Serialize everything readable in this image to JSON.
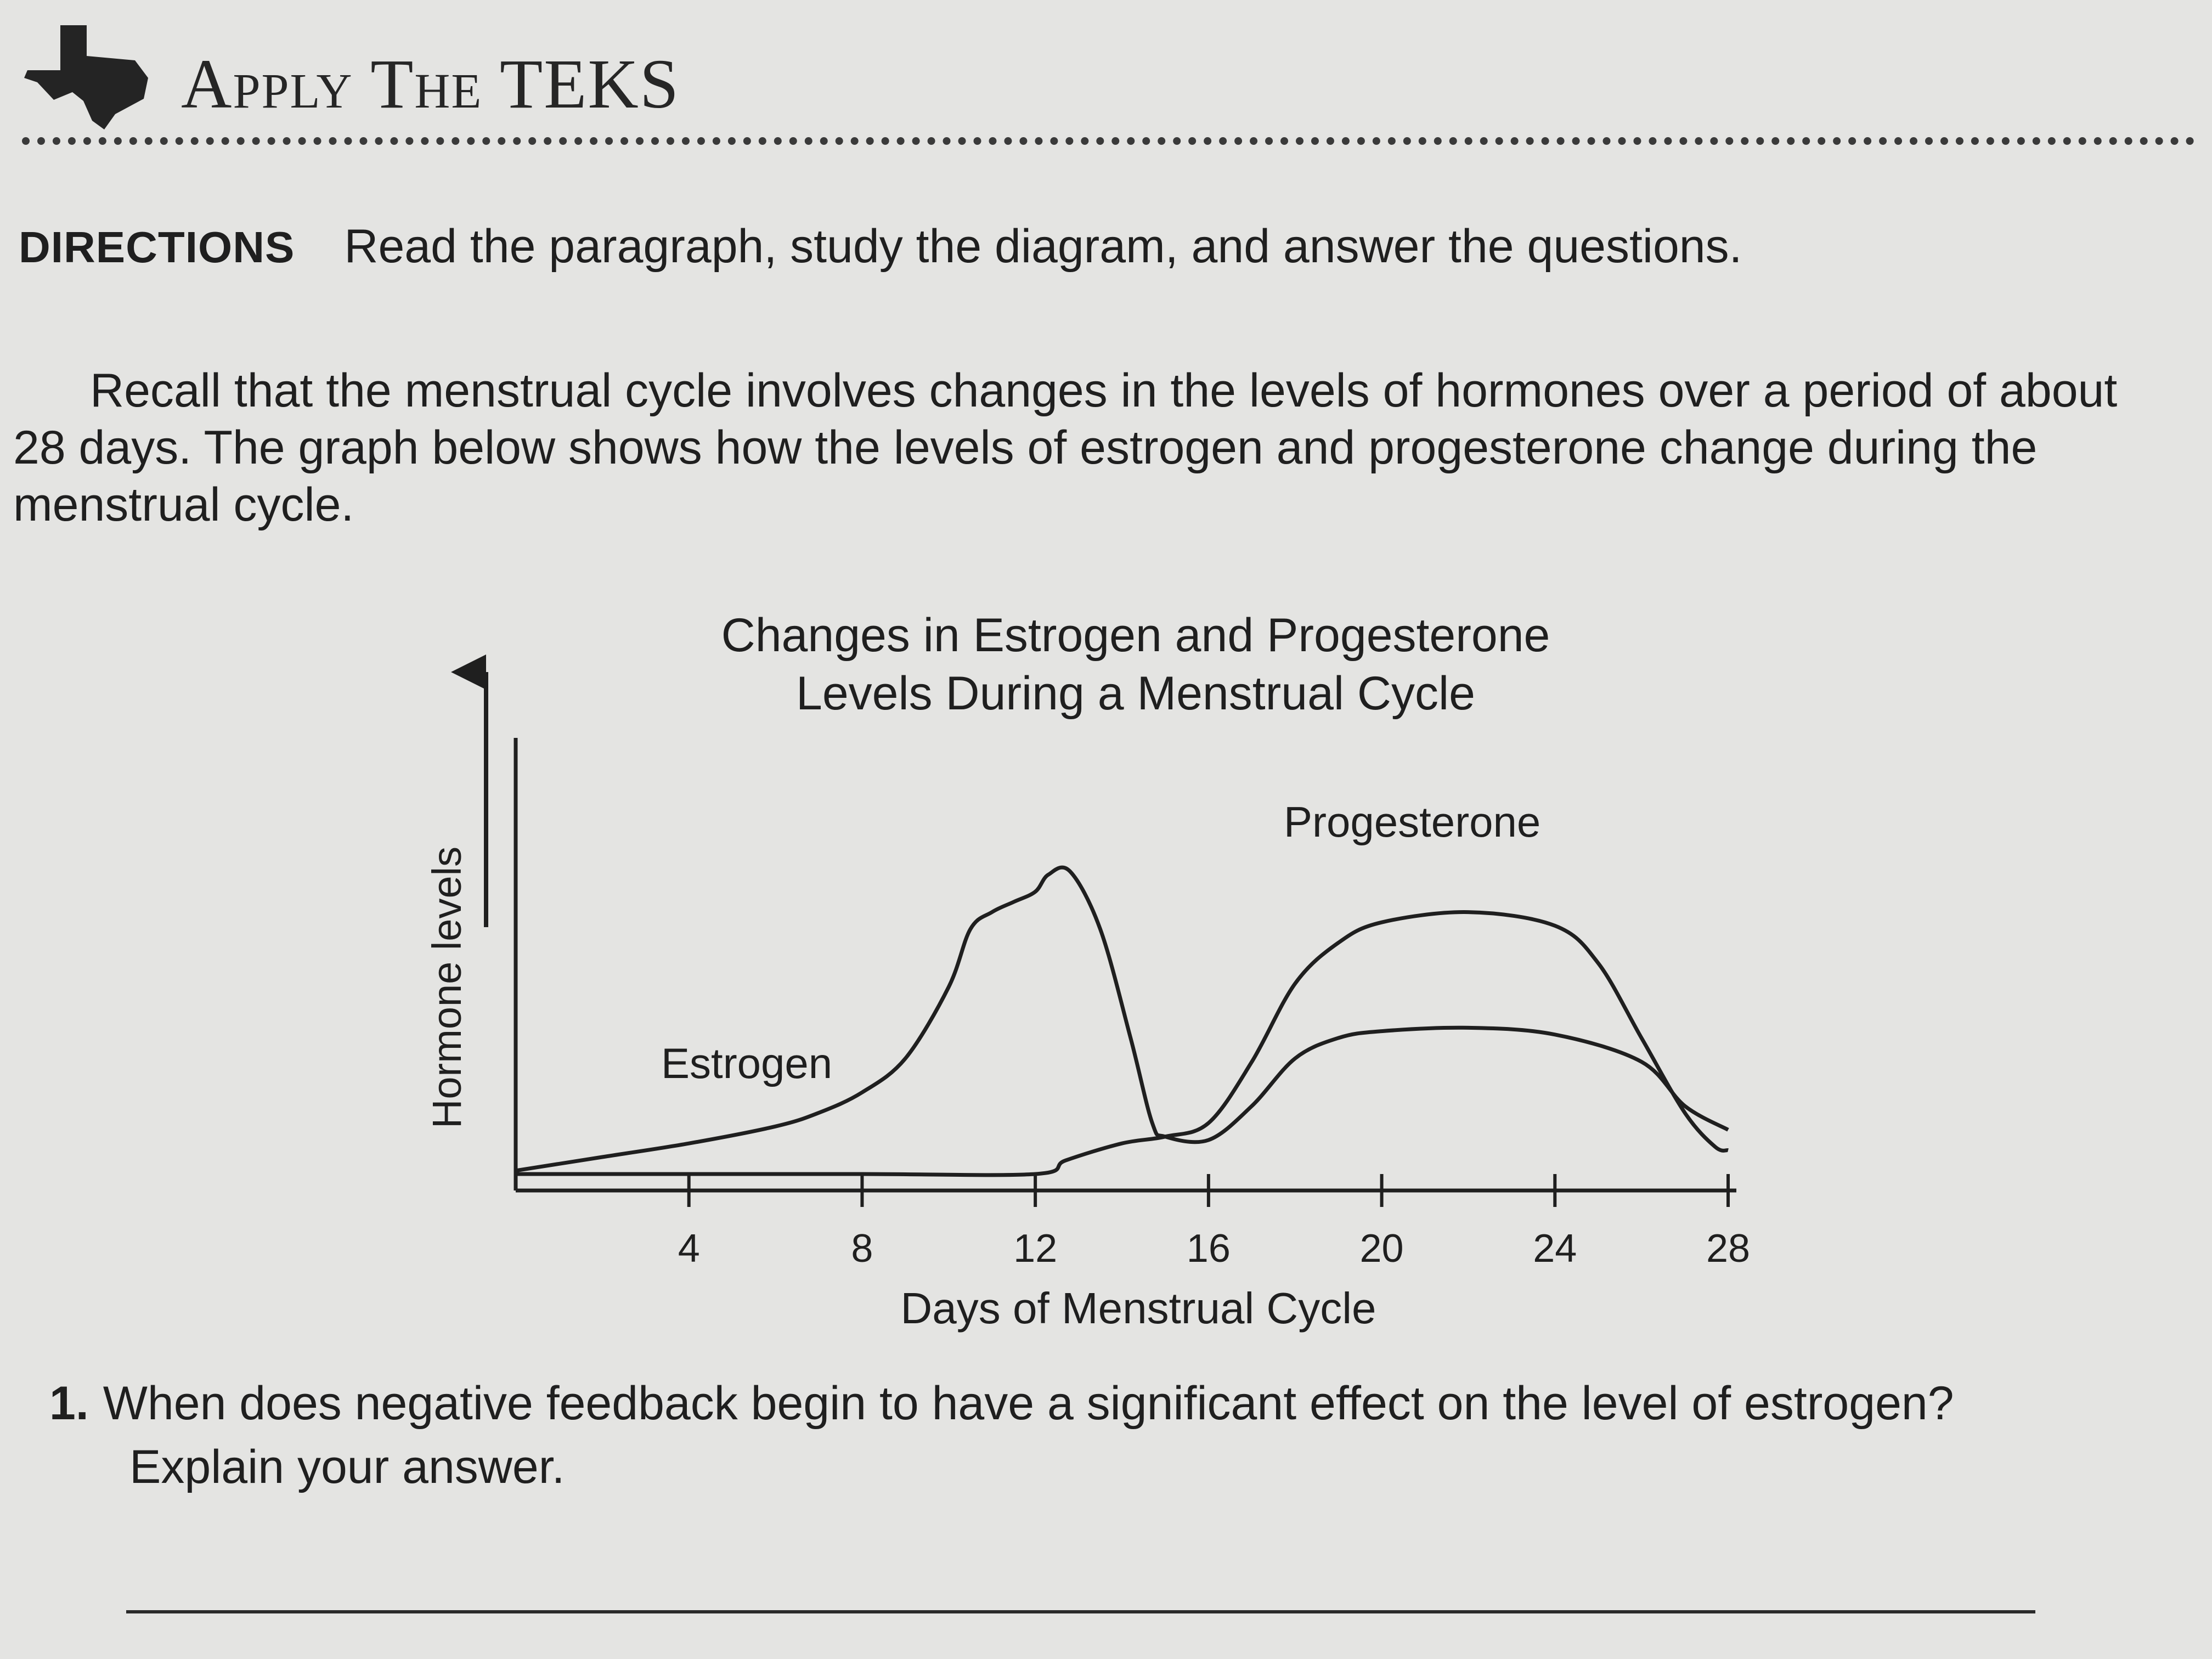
{
  "header": {
    "title": "Apply The TEKS",
    "icon": "texas-map-icon"
  },
  "directions": {
    "label": "DIRECTIONS",
    "text": "Read the paragraph, study the diagram, and answer the questions."
  },
  "paragraph": "Recall that the menstrual cycle involves changes in the levels of hormones over a period of about 28 days. The graph below shows how the levels of estrogen and progesterone change during the menstrual cycle.",
  "chart_data": {
    "type": "line",
    "title": "Changes in Estrogen and Progesterone Levels During a Menstrual Cycle",
    "xlabel": "Days of Menstrual Cycle",
    "ylabel": "Hormone levels",
    "x_ticks": [
      4,
      8,
      12,
      16,
      20,
      24,
      28
    ],
    "xlim": [
      0,
      28
    ],
    "ylim": [
      0,
      100
    ],
    "grid": false,
    "y_axis_arrow": true,
    "series": [
      {
        "name": "Estrogen",
        "points": [
          [
            0,
            1
          ],
          [
            2,
            5
          ],
          [
            4,
            9
          ],
          [
            6,
            14
          ],
          [
            7,
            18
          ],
          [
            8,
            24
          ],
          [
            9,
            34
          ],
          [
            10,
            55
          ],
          [
            10.5,
            72
          ],
          [
            11,
            77
          ],
          [
            11.5,
            80
          ],
          [
            12,
            83
          ],
          [
            12.3,
            88
          ],
          [
            12.8,
            89
          ],
          [
            13.5,
            72
          ],
          [
            14.2,
            40
          ],
          [
            14.7,
            15
          ],
          [
            15,
            11
          ],
          [
            16,
            10
          ],
          [
            17,
            20
          ],
          [
            18,
            34
          ],
          [
            19,
            40
          ],
          [
            20,
            42
          ],
          [
            22,
            43
          ],
          [
            24,
            41
          ],
          [
            26,
            33
          ],
          [
            27,
            20
          ],
          [
            28,
            13
          ]
        ]
      },
      {
        "name": "Progesterone",
        "points": [
          [
            0,
            0
          ],
          [
            4,
            0
          ],
          [
            8,
            0
          ],
          [
            12,
            0
          ],
          [
            12.7,
            4
          ],
          [
            14,
            9
          ],
          [
            15,
            11
          ],
          [
            16,
            15
          ],
          [
            17,
            33
          ],
          [
            18,
            56
          ],
          [
            19,
            68
          ],
          [
            20,
            74
          ],
          [
            22,
            77
          ],
          [
            24,
            73
          ],
          [
            25,
            62
          ],
          [
            26,
            40
          ],
          [
            27,
            18
          ],
          [
            27.7,
            8
          ],
          [
            28,
            7
          ]
        ]
      }
    ]
  },
  "question": {
    "number": "1.",
    "line1": "When does negative feedback begin to have a significant effect on the level of estrogen?",
    "line2": "Explain your answer."
  }
}
